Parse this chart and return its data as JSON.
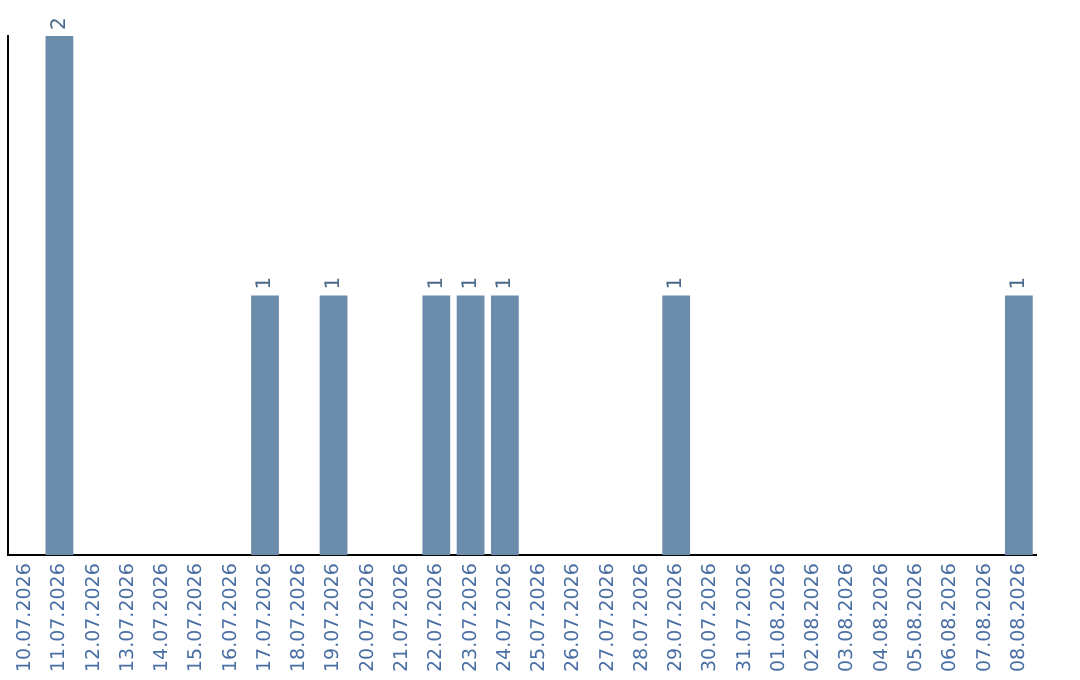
{
  "chart_data": {
    "type": "bar",
    "categories": [
      "10.07.2026",
      "11.07.2026",
      "12.07.2026",
      "13.07.2026",
      "14.07.2026",
      "15.07.2026",
      "16.07.2026",
      "17.07.2026",
      "18.07.2026",
      "19.07.2026",
      "20.07.2026",
      "21.07.2026",
      "22.07.2026",
      "23.07.2026",
      "24.07.2026",
      "25.07.2026",
      "26.07.2026",
      "27.07.2026",
      "28.07.2026",
      "29.07.2026",
      "30.07.2026",
      "31.07.2026",
      "01.08.2026",
      "02.08.2026",
      "03.08.2026",
      "04.08.2026",
      "05.08.2026",
      "06.08.2026",
      "07.08.2026",
      "08.08.2026"
    ],
    "values": [
      0,
      2,
      0,
      0,
      0,
      0,
      0,
      1,
      0,
      1,
      0,
      0,
      1,
      1,
      1,
      0,
      0,
      0,
      0,
      1,
      0,
      0,
      0,
      0,
      0,
      0,
      0,
      0,
      0,
      1
    ],
    "value_labels": [
      null,
      "2",
      null,
      null,
      null,
      null,
      null,
      "1",
      null,
      "1",
      null,
      null,
      "1",
      "1",
      "1",
      null,
      null,
      null,
      null,
      "1",
      null,
      null,
      null,
      null,
      null,
      null,
      null,
      null,
      null,
      "1"
    ],
    "color": "#6b8cab",
    "grid": false,
    "legend": false,
    "tick_labels": "x"
  }
}
